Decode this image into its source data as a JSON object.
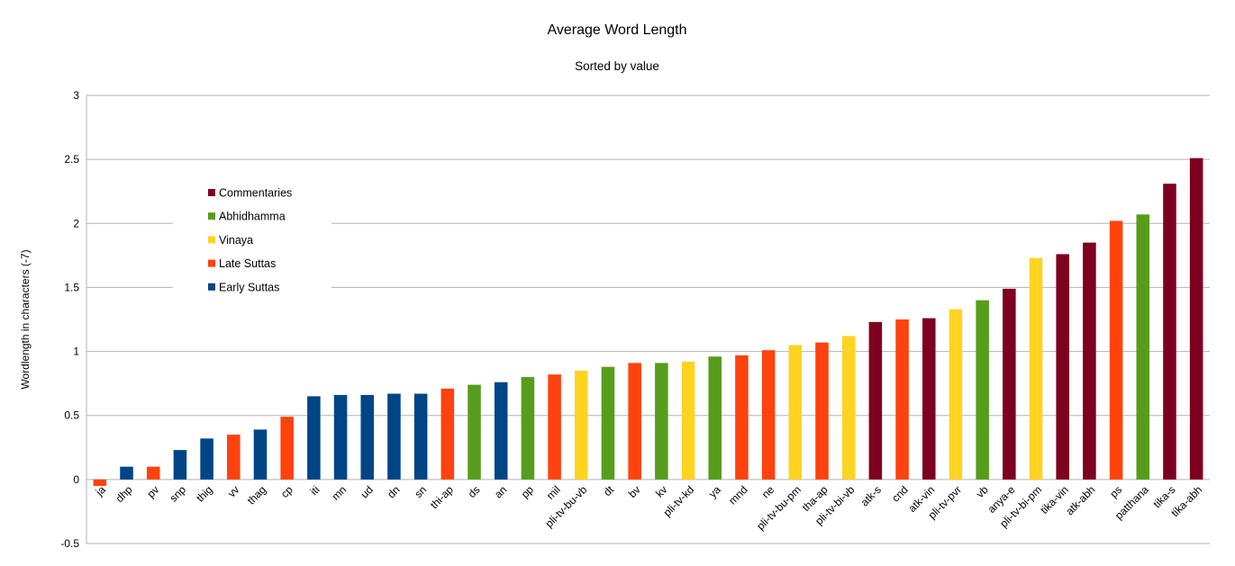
{
  "chart_data": {
    "type": "bar",
    "title": "Average Word Length",
    "subtitle": "Sorted by value",
    "xlabel": "",
    "ylabel": "Wordlength in characters (-7)",
    "ylim": [
      -0.5,
      3
    ],
    "yticks": [
      -0.5,
      0,
      0.5,
      1,
      1.5,
      2,
      2.5,
      3
    ],
    "ytick_labels": [
      "-0.5",
      "0",
      "0.5",
      "1",
      "1.5",
      "2",
      "2.5",
      "3"
    ],
    "grid": true,
    "legend_position": "left",
    "legend": [
      {
        "name": "Commentaries",
        "color": "#7e0021"
      },
      {
        "name": "Abhidhamma",
        "color": "#579d1c"
      },
      {
        "name": "Vinaya",
        "color": "#ffd320"
      },
      {
        "name": "Late Suttas",
        "color": "#ff420e"
      },
      {
        "name": "Early Suttas",
        "color": "#004586"
      }
    ],
    "categories": [
      "ja",
      "dhp",
      "pv",
      "snp",
      "thig",
      "vv",
      "thag",
      "cp",
      "iti",
      "mn",
      "ud",
      "dn",
      "sn",
      "thi-ap",
      "ds",
      "an",
      "pp",
      "mil",
      "pli-tv-bu-vb",
      "dt",
      "bv",
      "kv",
      "pli-tv-kd",
      "ya",
      "mnd",
      "ne",
      "pli-tv-bu-pm",
      "tha-ap",
      "pli-tv-bi-vb",
      "atk-s",
      "cnd",
      "atk-vin",
      "pli-tv-pvr",
      "vb",
      "anya-e",
      "pli-tv-bi-pm",
      "tika-vin",
      "atk-abh",
      "ps",
      "patthana",
      "tika-s",
      "tika-abh"
    ],
    "values": [
      -0.05,
      0.1,
      0.1,
      0.23,
      0.32,
      0.35,
      0.39,
      0.49,
      0.65,
      0.66,
      0.66,
      0.67,
      0.67,
      0.71,
      0.74,
      0.76,
      0.8,
      0.82,
      0.85,
      0.88,
      0.91,
      0.91,
      0.92,
      0.96,
      0.97,
      1.01,
      1.05,
      1.07,
      1.12,
      1.23,
      1.25,
      1.26,
      1.33,
      1.4,
      1.49,
      1.73,
      1.76,
      1.85,
      2.02,
      2.07,
      2.31,
      2.51
    ],
    "groups": [
      "Late Suttas",
      "Early Suttas",
      "Late Suttas",
      "Early Suttas",
      "Early Suttas",
      "Late Suttas",
      "Early Suttas",
      "Late Suttas",
      "Early Suttas",
      "Early Suttas",
      "Early Suttas",
      "Early Suttas",
      "Early Suttas",
      "Late Suttas",
      "Abhidhamma",
      "Early Suttas",
      "Abhidhamma",
      "Late Suttas",
      "Vinaya",
      "Abhidhamma",
      "Late Suttas",
      "Abhidhamma",
      "Vinaya",
      "Abhidhamma",
      "Late Suttas",
      "Late Suttas",
      "Vinaya",
      "Late Suttas",
      "Vinaya",
      "Commentaries",
      "Late Suttas",
      "Commentaries",
      "Vinaya",
      "Abhidhamma",
      "Commentaries",
      "Vinaya",
      "Commentaries",
      "Commentaries",
      "Late Suttas",
      "Abhidhamma",
      "Commentaries",
      "Commentaries"
    ]
  }
}
